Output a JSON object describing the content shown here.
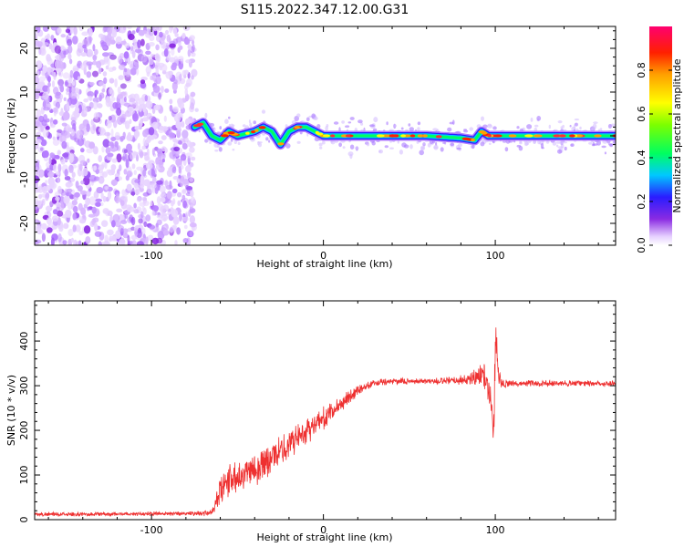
{
  "title": "S115.2022.347.12.00.G31",
  "colors": {
    "snr_line": "#ee3030",
    "scatter_violet": "#8a2be2"
  },
  "chart_data": [
    {
      "type": "heatmap",
      "xlabel": "Height of straight line (km)",
      "ylabel": "Frequency (Hz)",
      "xlim": [
        -168,
        170
      ],
      "ylim": [
        -25,
        25
      ],
      "xticks": [
        -100,
        0,
        100
      ],
      "xtick_labels": [
        "-100",
        "0",
        "100"
      ],
      "yticks": [
        20,
        10,
        0,
        -10,
        -20
      ],
      "ytick_labels": [
        "20",
        "10",
        "0",
        "-10",
        "-20"
      ],
      "noise_region_x": [
        -168,
        -75
      ],
      "ridge": [
        [
          -75,
          2
        ],
        [
          -70,
          3
        ],
        [
          -65,
          0
        ],
        [
          -60,
          -1
        ],
        [
          -55,
          1
        ],
        [
          -50,
          0
        ],
        [
          -45,
          0.5
        ],
        [
          -40,
          1
        ],
        [
          -35,
          2
        ],
        [
          -30,
          1
        ],
        [
          -25,
          -2
        ],
        [
          -20,
          1
        ],
        [
          -15,
          2
        ],
        [
          -10,
          2
        ],
        [
          -5,
          1
        ],
        [
          0,
          0
        ],
        [
          20,
          0
        ],
        [
          40,
          0
        ],
        [
          60,
          0
        ],
        [
          80,
          -0.5
        ],
        [
          88,
          -1
        ],
        [
          92,
          1
        ],
        [
          96,
          0
        ],
        [
          100,
          0
        ],
        [
          110,
          0
        ],
        [
          140,
          0
        ],
        [
          170,
          0
        ]
      ],
      "colorbar": {
        "label": "Normalized spectral amplitude",
        "range": [
          0,
          1
        ],
        "ticks": [
          0.0,
          0.2,
          0.4,
          0.6,
          0.8
        ],
        "tick_labels": [
          "0.0",
          "0.2",
          "0.4",
          "0.6",
          "0.8"
        ]
      }
    },
    {
      "type": "line",
      "xlabel": "Height of straight line (km)",
      "ylabel": "SNR (10 * v/v)",
      "xlim": [
        -168,
        170
      ],
      "ylim": [
        0,
        490
      ],
      "xticks": [
        -100,
        0,
        100
      ],
      "xtick_labels": [
        "-100",
        "0",
        "100"
      ],
      "yticks": [
        0,
        100,
        200,
        300,
        400
      ],
      "ytick_labels": [
        "0",
        "100",
        "200",
        "300",
        "400"
      ],
      "series": [
        {
          "x": [
            -168,
            -140,
            -110,
            -80,
            -65,
            -60,
            -55,
            -50,
            -45,
            -40,
            -35,
            -30,
            -25,
            -20,
            -15,
            -10,
            -5,
            0,
            5,
            10,
            15,
            20,
            25,
            30,
            40,
            50,
            60,
            70,
            80,
            85,
            90,
            93,
            96,
            98,
            99,
            100,
            101,
            102,
            104,
            110,
            130,
            150,
            170
          ],
          "values": [
            12,
            12,
            13,
            14,
            15,
            60,
            90,
            100,
            110,
            115,
            125,
            140,
            150,
            170,
            185,
            200,
            215,
            225,
            240,
            260,
            275,
            290,
            300,
            305,
            310,
            310,
            310,
            310,
            312,
            315,
            320,
            330,
            300,
            250,
            180,
            400,
            380,
            320,
            305,
            305,
            305,
            305,
            305
          ],
          "noise": [
            5,
            5,
            5,
            6,
            8,
            40,
            45,
            45,
            45,
            45,
            45,
            40,
            40,
            40,
            35,
            35,
            30,
            30,
            25,
            20,
            18,
            15,
            12,
            10,
            8,
            8,
            8,
            10,
            12,
            18,
            25,
            30,
            40,
            40,
            40,
            60,
            50,
            30,
            12,
            8,
            8,
            8,
            8
          ]
        }
      ]
    }
  ]
}
